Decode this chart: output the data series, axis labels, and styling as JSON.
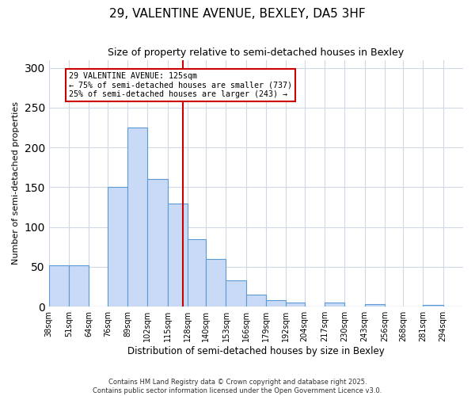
{
  "title": "29, VALENTINE AVENUE, BEXLEY, DA5 3HF",
  "subtitle": "Size of property relative to semi-detached houses in Bexley",
  "xlabel": "Distribution of semi-detached houses by size in Bexley",
  "ylabel": "Number of semi-detached properties",
  "bin_labels": [
    "38sqm",
    "51sqm",
    "64sqm",
    "76sqm",
    "89sqm",
    "102sqm",
    "115sqm",
    "128sqm",
    "140sqm",
    "153sqm",
    "166sqm",
    "179sqm",
    "192sqm",
    "204sqm",
    "217sqm",
    "230sqm",
    "243sqm",
    "256sqm",
    "268sqm",
    "281sqm",
    "294sqm"
  ],
  "bar_heights": [
    52,
    52,
    0,
    150,
    225,
    160,
    130,
    85,
    60,
    33,
    15,
    8,
    5,
    0,
    5,
    0,
    3,
    0,
    0,
    2,
    0
  ],
  "bin_edges": [
    38,
    51,
    64,
    76,
    89,
    102,
    115,
    128,
    140,
    153,
    166,
    179,
    192,
    204,
    217,
    230,
    243,
    256,
    268,
    281,
    294,
    307
  ],
  "bar_color": "#c8daf5",
  "bar_edge_color": "#5b9bd5",
  "property_line_x": 125,
  "property_line_color": "#cc0000",
  "annotation_title": "29 VALENTINE AVENUE: 125sqm",
  "annotation_line1": "← 75% of semi-detached houses are smaller (737)",
  "annotation_line2": "25% of semi-detached houses are larger (243) →",
  "annotation_box_color": "#cc0000",
  "ylim": [
    0,
    310
  ],
  "yticks": [
    0,
    50,
    100,
    150,
    200,
    250,
    300
  ],
  "background_color": "#ffffff",
  "grid_color": "#d0d8e8",
  "footnote1": "Contains HM Land Registry data © Crown copyright and database right 2025.",
  "footnote2": "Contains public sector information licensed under the Open Government Licence v3.0."
}
